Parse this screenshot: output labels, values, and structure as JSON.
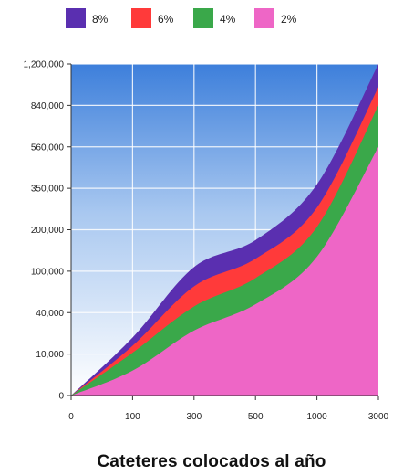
{
  "chart_data": {
    "type": "area",
    "stacked": true,
    "title": "Cateteres colocados al año",
    "xlabel": "",
    "ylabel": "",
    "x_tick_labels": [
      "0",
      "100",
      "300",
      "500",
      "1000",
      "3000"
    ],
    "y_tick_labels": [
      "0",
      "10,000",
      "40,000",
      "100,000",
      "200,000",
      "350,000",
      "560,000",
      "840,000",
      "1,200,000"
    ],
    "ylim": [
      0,
      1200000
    ],
    "grid": true,
    "background": "sky gradient",
    "legend_position": "top",
    "legend_order": [
      "8%",
      "6%",
      "4%",
      "2%"
    ],
    "x": [
      "0",
      "100",
      "300",
      "500",
      "1000",
      "3000"
    ],
    "series": [
      {
        "name": "2%",
        "color": "#ee66c6",
        "cumulative_values": [
          0,
          6000,
          27000,
          52000,
          135000,
          560000
        ]
      },
      {
        "name": "4%",
        "color": "#3aa84a",
        "cumulative_values": [
          0,
          11000,
          49000,
          90000,
          210000,
          840000
        ]
      },
      {
        "name": "6%",
        "color": "#ff3a3a",
        "cumulative_values": [
          0,
          16000,
          78000,
          130000,
          280000,
          1000000
        ]
      },
      {
        "name": "8%",
        "color": "#5a2fb0",
        "cumulative_values": [
          0,
          22000,
          110000,
          175000,
          370000,
          1200000
        ]
      }
    ]
  }
}
